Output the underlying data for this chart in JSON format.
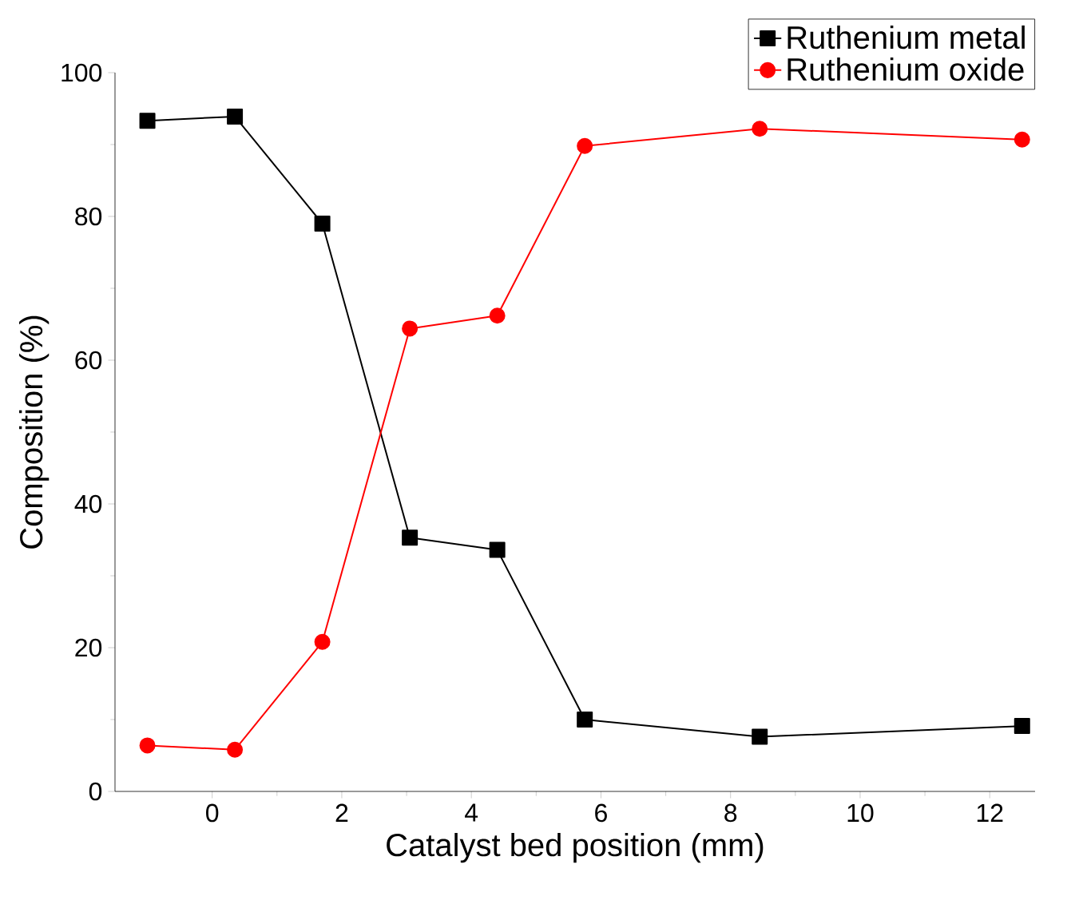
{
  "chart_data": {
    "type": "line",
    "xlabel": "Catalyst bed position (mm)",
    "ylabel": "Composition (%)",
    "x": [
      -1.0,
      0.35,
      1.7,
      3.05,
      4.4,
      5.75,
      8.45,
      12.5
    ],
    "series": [
      {
        "name": "Ruthenium metal",
        "color": "#000000",
        "marker": "square",
        "values": [
          93.3,
          93.9,
          79.0,
          35.3,
          33.6,
          10.0,
          7.6,
          9.1
        ]
      },
      {
        "name": "Ruthenium oxide",
        "color": "#ff0000",
        "marker": "circle",
        "values": [
          6.4,
          5.8,
          20.8,
          64.4,
          66.2,
          89.8,
          92.2,
          90.7
        ]
      }
    ],
    "xlim": [
      -1.5,
      12.7
    ],
    "ylim": [
      0,
      100
    ],
    "xticks": [
      0,
      2,
      4,
      6,
      8,
      10,
      12
    ],
    "yticks": [
      0,
      20,
      40,
      60,
      80,
      100
    ],
    "legend": "top right",
    "line_style": "solid"
  }
}
